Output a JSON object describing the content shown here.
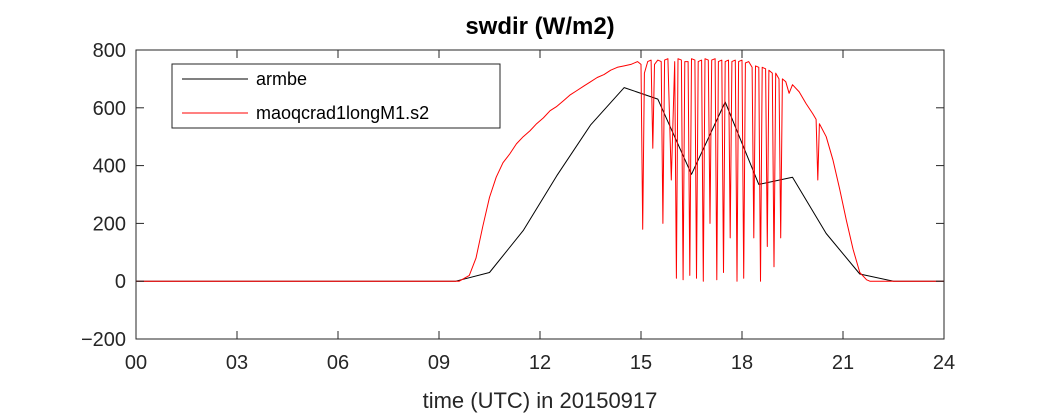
{
  "chart_data": {
    "type": "line",
    "title": "swdir  (W/m2)",
    "xlabel": "time (UTC) in 20150917",
    "ylabel": "",
    "xlim": [
      0,
      24
    ],
    "ylim": [
      -200,
      800
    ],
    "x_ticks": [
      0,
      3,
      6,
      9,
      12,
      15,
      18,
      21,
      24
    ],
    "x_tick_labels": [
      "00",
      "03",
      "06",
      "09",
      "12",
      "15",
      "18",
      "21",
      "24"
    ],
    "y_ticks": [
      -200,
      0,
      200,
      400,
      600,
      800
    ],
    "y_tick_labels": [
      "−200",
      "0",
      "200",
      "400",
      "600",
      "800"
    ],
    "grid": false,
    "legend_position": "top-left",
    "series": [
      {
        "name": "armbe",
        "color": "#000000",
        "x": [
          0,
          9.5,
          10.5,
          11.5,
          12.5,
          13.5,
          14.5,
          15.5,
          16.5,
          17.5,
          18.5,
          19.5,
          20.5,
          21.5,
          22.5,
          24
        ],
        "y": [
          0,
          0,
          30,
          175,
          365,
          540,
          670,
          630,
          370,
          620,
          335,
          360,
          165,
          25,
          0,
          0
        ]
      },
      {
        "name": "maoqcrad1longM1.s2",
        "color": "#ff0000",
        "x": [
          0,
          9.6,
          9.9,
          10.1,
          10.3,
          10.5,
          10.7,
          10.9,
          11.1,
          11.3,
          11.5,
          11.7,
          11.9,
          12.1,
          12.3,
          12.5,
          12.7,
          12.9,
          13.1,
          13.3,
          13.5,
          13.7,
          13.9,
          14.1,
          14.3,
          14.5,
          14.7,
          14.9,
          15.0,
          15.05,
          15.1,
          15.2,
          15.3,
          15.35,
          15.4,
          15.5,
          15.6,
          15.65,
          15.7,
          15.8,
          15.9,
          16.0,
          16.05,
          16.1,
          16.2,
          16.25,
          16.3,
          16.4,
          16.45,
          16.5,
          16.6,
          16.65,
          16.7,
          16.8,
          16.85,
          16.9,
          17.0,
          17.05,
          17.1,
          17.2,
          17.25,
          17.3,
          17.4,
          17.45,
          17.5,
          17.6,
          17.65,
          17.7,
          17.8,
          17.85,
          17.9,
          18.0,
          18.05,
          18.1,
          18.2,
          18.3,
          18.35,
          18.4,
          18.5,
          18.55,
          18.6,
          18.7,
          18.75,
          18.8,
          18.9,
          18.95,
          19.0,
          19.1,
          19.15,
          19.2,
          19.3,
          19.4,
          19.5,
          19.7,
          19.9,
          20.1,
          20.2,
          20.25,
          20.3,
          20.5,
          20.7,
          20.9,
          21.1,
          21.3,
          21.5,
          21.7,
          21.8,
          22.0,
          24
        ],
        "y": [
          0,
          0,
          20,
          80,
          190,
          290,
          360,
          410,
          440,
          475,
          500,
          520,
          545,
          565,
          590,
          605,
          625,
          645,
          660,
          675,
          690,
          705,
          715,
          730,
          740,
          745,
          750,
          760,
          750,
          180,
          720,
          760,
          765,
          460,
          750,
          765,
          760,
          200,
          765,
          770,
          350,
          760,
          10,
          770,
          765,
          5,
          760,
          760,
          20,
          770,
          765,
          10,
          760,
          765,
          0,
          770,
          765,
          200,
          765,
          770,
          5,
          760,
          765,
          30,
          760,
          765,
          150,
          760,
          765,
          0,
          760,
          765,
          10,
          755,
          760,
          740,
          150,
          745,
          740,
          0,
          740,
          735,
          120,
          730,
          720,
          50,
          720,
          700,
          150,
          700,
          690,
          650,
          680,
          655,
          615,
          580,
          560,
          350,
          545,
          500,
          420,
          320,
          210,
          110,
          30,
          5,
          0,
          0,
          0
        ]
      }
    ]
  }
}
